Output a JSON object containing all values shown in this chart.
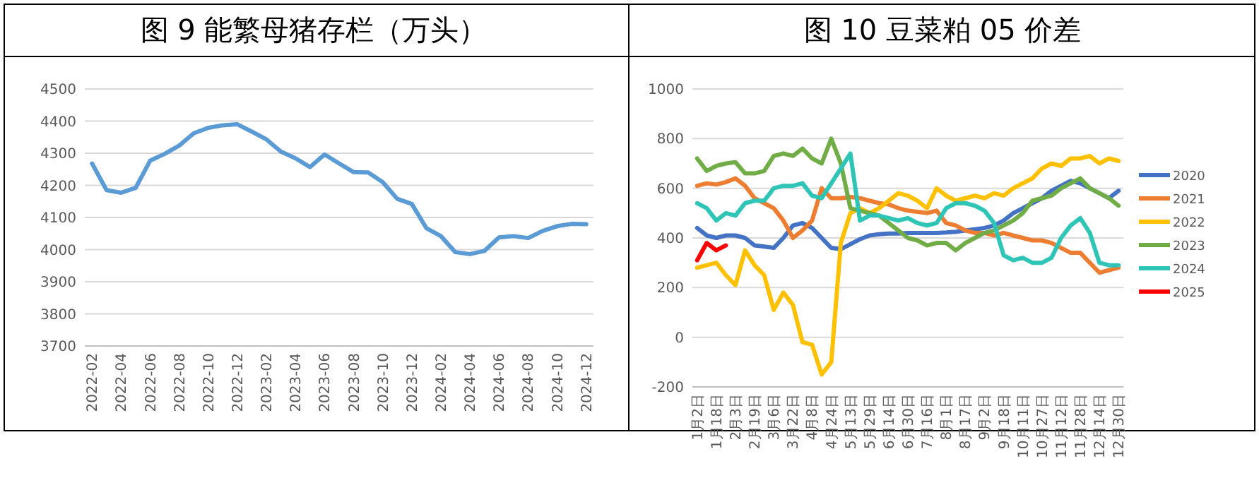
{
  "chart_data": [
    {
      "type": "line",
      "title": "图 9 能繁母猪存栏（万头）",
      "categories": [
        "2022-02",
        null,
        "2022-04",
        null,
        "2022-06",
        null,
        "2022-08",
        null,
        "2022-10",
        null,
        "2022-12",
        null,
        "2023-02",
        null,
        "2023-04",
        null,
        "2023-06",
        null,
        "2023-08",
        null,
        "2023-10",
        null,
        "2023-12",
        null,
        "2024-02",
        null,
        "2024-04",
        null,
        "2024-06",
        null,
        "2024-08",
        null,
        "2024-10",
        null,
        "2024-12"
      ],
      "values": [
        4268,
        4185,
        4177,
        4192,
        4277,
        4298,
        4324,
        4362,
        4379,
        4387,
        4390,
        4367,
        4343,
        4305,
        4284,
        4257,
        4296,
        4268,
        4241,
        4240,
        4210,
        4158,
        4142,
        4067,
        4042,
        3992,
        3986,
        3996,
        4038,
        4042,
        4036,
        4058,
        4073,
        4080,
        4079
      ],
      "color": "#5b9bd5",
      "ylim": [
        3700,
        4500
      ],
      "yticks": [
        3700,
        3800,
        3900,
        4000,
        4100,
        4200,
        4300,
        4400,
        4500
      ],
      "grid": "y"
    },
    {
      "type": "line",
      "title": "图 10 豆菜粕 05 价差",
      "categories": [
        "1月2日",
        null,
        "1月18日",
        null,
        "2月3日",
        null,
        "2月19日",
        null,
        "3月6日",
        null,
        "3月22日",
        null,
        "4月8日",
        null,
        "4月24日",
        null,
        "5月13日",
        null,
        "5月29日",
        null,
        "6月14日",
        null,
        "6月30日",
        null,
        "7月16日",
        null,
        "8月1日",
        null,
        "8月17日",
        null,
        "9月2日",
        null,
        "9月18日",
        null,
        "10月11日",
        null,
        "10月27日",
        null,
        "11月12日",
        null,
        "11月28日",
        null,
        "12月14日",
        null,
        "12月30日"
      ],
      "series": [
        {
          "name": "2020",
          "color": "#4472c4",
          "values": [
            440,
            410,
            400,
            410,
            410,
            400,
            370,
            365,
            360,
            400,
            450,
            460,
            440,
            400,
            360,
            355,
            375,
            395,
            410,
            415,
            418,
            418,
            420,
            420,
            420,
            420,
            422,
            425,
            430,
            435,
            440,
            450,
            470,
            500,
            520,
            540,
            560,
            590,
            610,
            630,
            620,
            600,
            580,
            560,
            590
          ]
        },
        {
          "name": "2021",
          "color": "#ed7d31",
          "values": [
            610,
            620,
            615,
            625,
            640,
            610,
            560,
            540,
            520,
            470,
            400,
            430,
            470,
            600,
            560,
            560,
            565,
            560,
            550,
            540,
            535,
            520,
            510,
            505,
            500,
            510,
            460,
            450,
            430,
            420,
            420,
            410,
            420,
            410,
            400,
            390,
            390,
            380,
            360,
            340,
            340,
            300,
            260,
            270,
            280
          ]
        },
        {
          "name": "2022",
          "color": "#ffc000",
          "values": [
            280,
            290,
            300,
            250,
            210,
            350,
            290,
            250,
            110,
            180,
            130,
            -20,
            -30,
            -150,
            -100,
            380,
            500,
            520,
            500,
            520,
            550,
            580,
            570,
            550,
            520,
            600,
            570,
            550,
            560,
            570,
            560,
            580,
            570,
            600,
            620,
            640,
            680,
            700,
            690,
            720,
            720,
            730,
            700,
            720,
            710
          ]
        },
        {
          "name": "2023",
          "color": "#70ad47",
          "values": [
            720,
            670,
            690,
            700,
            705,
            660,
            660,
            670,
            730,
            740,
            730,
            760,
            720,
            700,
            800,
            700,
            520,
            510,
            500,
            490,
            460,
            430,
            400,
            390,
            370,
            380,
            380,
            350,
            380,
            400,
            420,
            430,
            450,
            470,
            500,
            550,
            560,
            570,
            600,
            620,
            640,
            600,
            580,
            560,
            530
          ]
        },
        {
          "name": "2024",
          "color": "#2ec4b6",
          "values": [
            540,
            520,
            470,
            500,
            490,
            540,
            550,
            550,
            600,
            610,
            610,
            620,
            570,
            560,
            620,
            680,
            740,
            470,
            490,
            490,
            480,
            470,
            480,
            460,
            450,
            460,
            520,
            540,
            540,
            530,
            510,
            460,
            330,
            310,
            320,
            300,
            300,
            320,
            400,
            450,
            480,
            420,
            300,
            290,
            290
          ]
        },
        {
          "name": "2025",
          "color": "#ff0000",
          "values": [
            310,
            380,
            350,
            370,
            null,
            null,
            null,
            null,
            null,
            null,
            null,
            null,
            null,
            null,
            null,
            null,
            null,
            null,
            null,
            null,
            null,
            null,
            null,
            null,
            null,
            null,
            null,
            null,
            null,
            null,
            null,
            null,
            null,
            null,
            null,
            null,
            null,
            null,
            null,
            null,
            null,
            null,
            null,
            null,
            null
          ]
        }
      ],
      "ylim": [
        -200,
        1000
      ],
      "yticks": [
        -200,
        0,
        200,
        400,
        600,
        800,
        1000
      ],
      "grid": "y",
      "legend": "right"
    }
  ]
}
